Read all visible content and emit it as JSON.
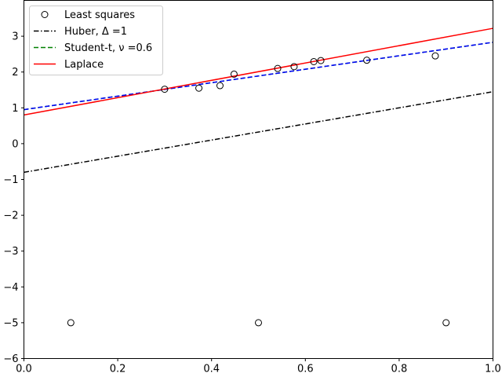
{
  "chart_data": {
    "type": "scatter",
    "title": "",
    "xlabel": "",
    "ylabel": "",
    "xlim": [
      0.0,
      1.0
    ],
    "ylim": [
      -6,
      4
    ],
    "grid": false,
    "legend_position": "top-left",
    "x_ticks": [
      0.0,
      0.2,
      0.4,
      0.6,
      0.8,
      1.0
    ],
    "x_tick_labels": [
      "0.0",
      "0.2",
      "0.4",
      "0.6",
      "0.8",
      "1.0"
    ],
    "y_ticks": [
      -6,
      -5,
      -4,
      -3,
      -2,
      -1,
      0,
      1,
      2,
      3
    ],
    "y_tick_labels": [
      "−6",
      "−5",
      "−4",
      "−3",
      "−2",
      "−1",
      "0",
      "1",
      "2",
      "3"
    ],
    "points": {
      "name": "Least squares",
      "marker": "open-circle",
      "color": "#000000",
      "x": [
        0.1,
        0.3,
        0.373,
        0.418,
        0.448,
        0.5,
        0.541,
        0.576,
        0.618,
        0.633,
        0.731,
        0.877,
        0.9
      ],
      "y": [
        -5.0,
        1.52,
        1.55,
        1.62,
        1.94,
        -5.0,
        2.1,
        2.15,
        2.29,
        2.32,
        2.33,
        2.45,
        -5.0
      ]
    },
    "lines": [
      {
        "name": "Huber, Δ =1",
        "color": "#000000",
        "dash": "dashdot",
        "x": [
          0.0,
          1.0
        ],
        "y": [
          -0.8,
          1.45
        ]
      },
      {
        "name": "Student-t, ν =0.6",
        "color": "#008000",
        "dash": "dashed",
        "x": [
          0.0,
          1.0
        ],
        "y": [
          0.95,
          2.83
        ]
      },
      {
        "name": "",
        "color": "#0000ff",
        "dash": "dashed",
        "x": [
          0.0,
          1.0
        ],
        "y": [
          0.95,
          2.83
        ]
      },
      {
        "name": "Laplace",
        "color": "#ff0000",
        "dash": "solid",
        "x": [
          0.0,
          1.0
        ],
        "y": [
          0.8,
          3.22
        ]
      }
    ],
    "legend": [
      "Least squares",
      "Huber, Δ =1",
      "Student-t, ν =0.6",
      "Laplace"
    ]
  }
}
